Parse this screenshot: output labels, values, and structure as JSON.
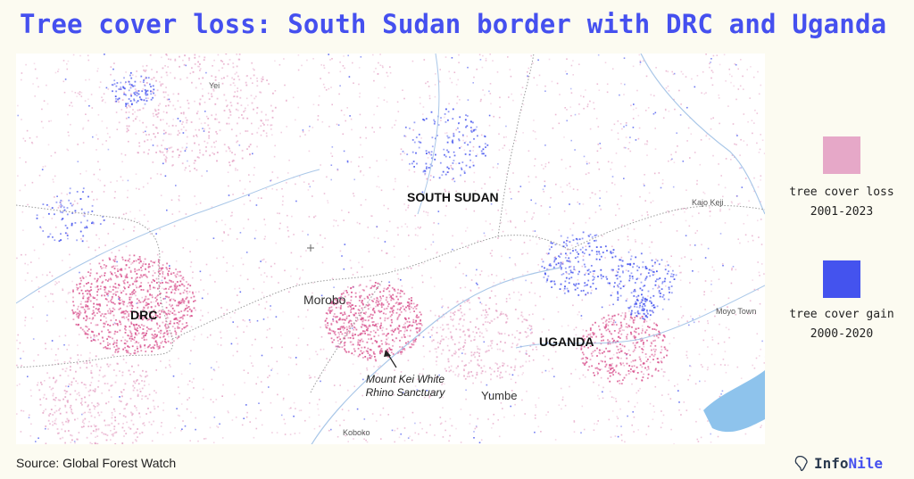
{
  "title": "Tree cover loss: South Sudan border with DRC and Uganda",
  "colors": {
    "loss": "#e6a8c8",
    "gain": "#4453ee",
    "title": "#4550ef",
    "background": "#fcfbf1"
  },
  "map": {
    "countries": {
      "south_sudan": "SOUTH SUDAN",
      "drc": "DRC",
      "uganda": "UGANDA"
    },
    "towns": {
      "yei": "Yei",
      "kajo_keji": "Kajo Keji",
      "morobo": "Morobo",
      "moyo_town": "Moyo Town",
      "yumbe": "Yumbe",
      "koboko": "Koboko"
    },
    "annotation": "Mount Kei White Rhino Sanctuary"
  },
  "legend": [
    {
      "label_line1": "tree cover loss",
      "label_line2": "2001-2023",
      "color": "#e6a8c8"
    },
    {
      "label_line1": "tree cover gain",
      "label_line2": "2000-2020",
      "color": "#4453ee"
    }
  ],
  "source": "Source: Global Forest Watch",
  "brand": {
    "part1": "Info",
    "part2": "Nile",
    "icon": "africa-map-icon"
  }
}
